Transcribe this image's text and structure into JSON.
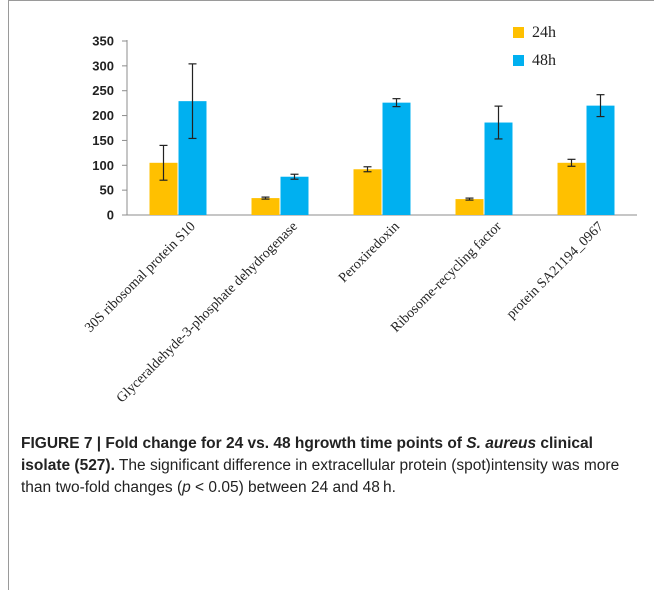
{
  "chart_data": {
    "type": "bar",
    "categories": [
      "30S ribosomal protein S10",
      "Glyceraldehyde-3-phosphate dehydrogenase",
      "Peroxiredoxin",
      "Ribosome-recycling factor",
      "protein SA21194_0967"
    ],
    "series": [
      {
        "name": "24h",
        "color": "#FFC000",
        "values": [
          105,
          34,
          92,
          32,
          105
        ],
        "errors": [
          35,
          2,
          5,
          2,
          7
        ]
      },
      {
        "name": "48h",
        "color": "#00B0F0",
        "values": [
          229,
          77,
          226,
          186,
          220
        ],
        "errors": [
          75,
          5,
          8,
          33,
          22
        ]
      }
    ],
    "yticks": [
      0,
      50,
      100,
      150,
      200,
      250,
      300,
      350
    ],
    "ylim": [
      0,
      350
    ],
    "legend_position": "top-right",
    "grid": false
  },
  "caption": {
    "label": "FIGURE 7 | Fold change for 24 vs. 48 hgrowth time points of ",
    "label_italic": "S. aureus",
    "label_end": " clinical isolate (527).",
    "text_1": " The significant difference in extracellular protein (spot)intensity was more than two-fold changes (",
    "p": "p",
    "text_2": " < 0.05) between 24 and 48 h."
  }
}
